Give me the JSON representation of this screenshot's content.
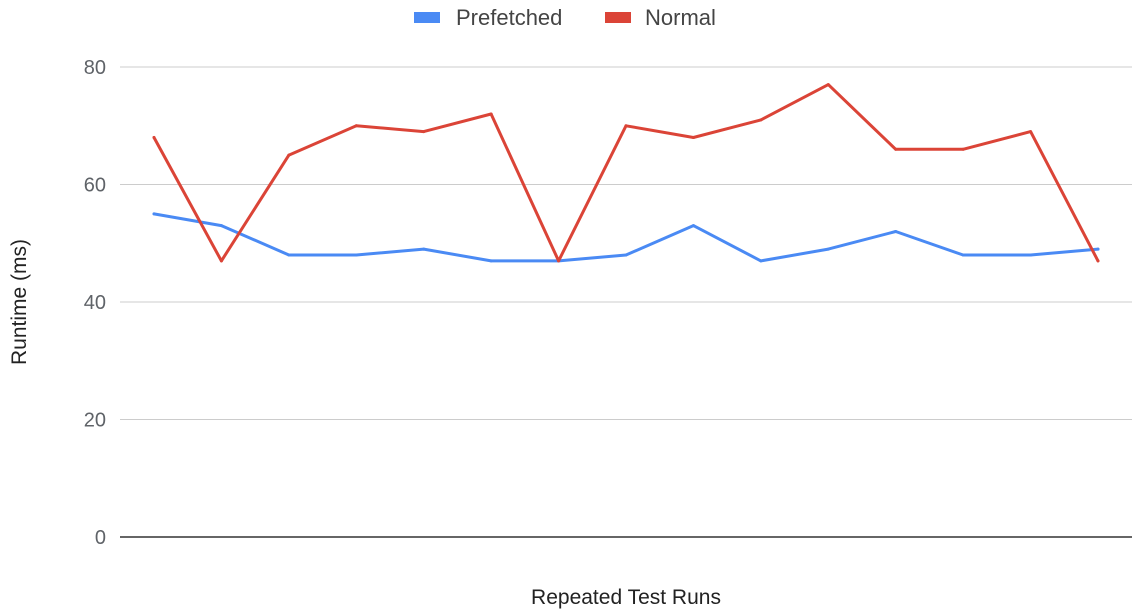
{
  "chart_data": {
    "type": "line",
    "title": "",
    "xlabel": "Repeated Test Runs",
    "ylabel": "Runtime (ms)",
    "ylim": [
      0,
      80
    ],
    "yticks": [
      "0",
      "20",
      "40",
      "60",
      "80"
    ],
    "grid": true,
    "legend_position": "top",
    "x": [
      1,
      2,
      3,
      4,
      5,
      6,
      7,
      8,
      9,
      10,
      11,
      12,
      13,
      14,
      15
    ],
    "series": [
      {
        "name": "Prefetched",
        "color": "#4a8af4",
        "values": [
          55,
          53,
          48,
          48,
          49,
          47,
          47,
          48,
          53,
          47,
          49,
          52,
          48,
          48,
          49
        ]
      },
      {
        "name": "Normal",
        "color": "#db4437",
        "values": [
          68,
          47,
          65,
          70,
          69,
          72,
          47,
          70,
          68,
          71,
          77,
          66,
          66,
          69,
          47
        ]
      }
    ]
  }
}
